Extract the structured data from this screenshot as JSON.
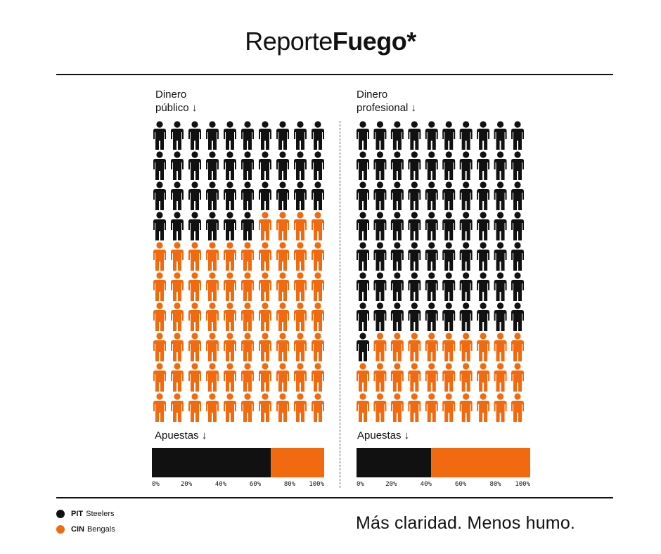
{
  "header": {
    "title_regular": "Reporte",
    "title_bold": "Fuego*"
  },
  "colors": {
    "pit": "#111111",
    "cin": "#F26A0F"
  },
  "legend": [
    {
      "abbr": "PIT",
      "name": "Steelers",
      "color": "#111111"
    },
    {
      "abbr": "CIN",
      "name": "Bengals",
      "color": "#F26A0F"
    }
  ],
  "tagline": "Más claridad. Menos humo.",
  "chart_data": [
    {
      "type": "pictogram",
      "title": "Dinero público ↓",
      "title_lines": [
        "Dinero",
        "público ↓"
      ],
      "icon": "person-icon",
      "total_icons": 100,
      "columns": 10,
      "series": [
        {
          "name": "PIT Steelers",
          "value": 36
        },
        {
          "name": "CIN Bengals",
          "value": 64
        }
      ]
    },
    {
      "type": "pictogram",
      "title": "Dinero profesional ↓",
      "title_lines": [
        "Dinero",
        "profesional ↓"
      ],
      "icon": "person-icon",
      "total_icons": 100,
      "columns": 10,
      "series": [
        {
          "name": "PIT Steelers",
          "value": 71
        },
        {
          "name": "CIN Bengals",
          "value": 29
        }
      ]
    },
    {
      "type": "bar",
      "orientation": "horizontal-stacked",
      "title": "Apuestas ↓",
      "xlim": [
        0,
        100
      ],
      "ticks": [
        "0%",
        "20%",
        "40%",
        "60%",
        "80%",
        "100%"
      ],
      "series": [
        {
          "name": "PIT Steelers",
          "value": 69
        },
        {
          "name": "CIN Bengals",
          "value": 31
        }
      ]
    },
    {
      "type": "bar",
      "orientation": "horizontal-stacked",
      "title": "Apuestas ↓",
      "xlim": [
        0,
        100
      ],
      "ticks": [
        "0%",
        "20%",
        "40%",
        "60%",
        "80%",
        "100%"
      ],
      "series": [
        {
          "name": "PIT Steelers",
          "value": 43
        },
        {
          "name": "CIN Bengals",
          "value": 57
        }
      ]
    }
  ]
}
